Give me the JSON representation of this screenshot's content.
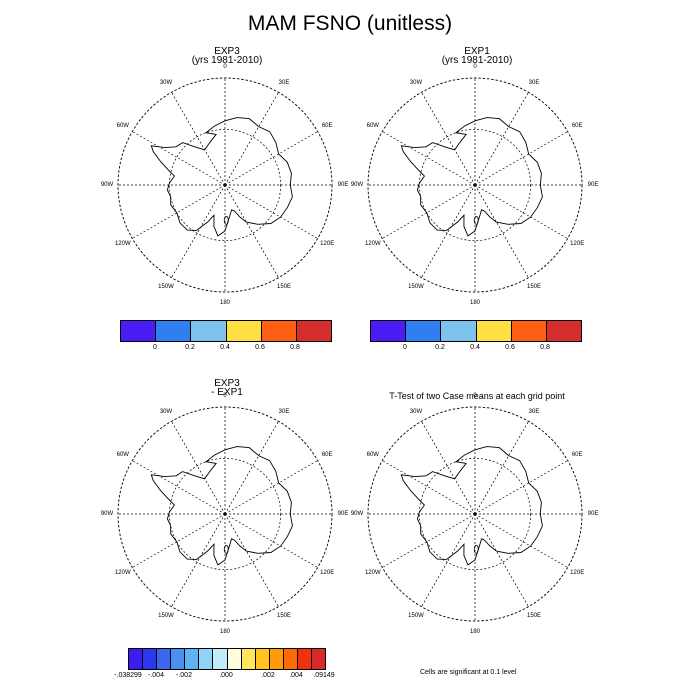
{
  "title": "MAM FSNO (unitless)",
  "panels": [
    {
      "id": "exp3",
      "title_line1": "EXP3",
      "title_line2": "(yrs 1981-2010)"
    },
    {
      "id": "exp1",
      "title_line1": "EXP1",
      "title_line2": "(yrs 1981-2010)"
    },
    {
      "id": "diff",
      "title_line1": "EXP3",
      "title_line2": "- EXP1"
    },
    {
      "id": "ttest",
      "title_line1": "T-Test of two Case means at each grid point",
      "title_line2": ""
    }
  ],
  "longitude_labels": [
    "0",
    "30E",
    "60E",
    "90E",
    "120E",
    "150E",
    "180",
    "150W",
    "120W",
    "90W",
    "60W",
    "30W"
  ],
  "colorbar_main": {
    "colors": [
      "#4a1df5",
      "#2f7ff0",
      "#7dc3ee",
      "#ffe042",
      "#ff5f12",
      "#d62d2d"
    ],
    "tick_labels": [
      "0",
      "0.2",
      "0.4",
      "0.6",
      "0.8"
    ]
  },
  "colorbar_diff": {
    "colors": [
      "#3d1cf0",
      "#2d38ee",
      "#3a66f0",
      "#4b8ff3",
      "#5fb3f5",
      "#8fd3f7",
      "#c0ecfa",
      "#fffde0",
      "#ffe55a",
      "#ffc21e",
      "#ff9a08",
      "#ff6a05",
      "#f2300c",
      "#d92a2a"
    ],
    "tick_labels": [
      "-.038299",
      "-.004",
      "-.002",
      ".000",
      ".002",
      ".004",
      ".09149"
    ]
  },
  "significance_note": "Cells are significant at 0.1 level"
}
